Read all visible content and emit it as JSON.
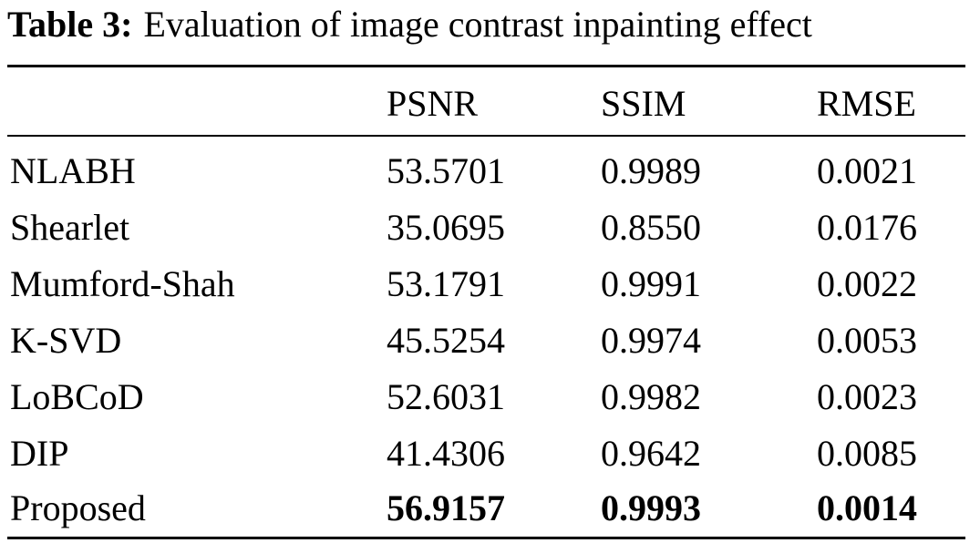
{
  "caption": {
    "label": "Table 3:",
    "text": "Evaluation of image contrast inpainting effect"
  },
  "table": {
    "columns": [
      "",
      "PSNR",
      "SSIM",
      "RMSE"
    ],
    "rows": [
      {
        "method": "NLABH",
        "psnr": "53.5701",
        "ssim": "0.9989",
        "rmse": "0.0021"
      },
      {
        "method": "Shearlet",
        "psnr": "35.0695",
        "ssim": "0.8550",
        "rmse": "0.0176"
      },
      {
        "method": "Mumford-Shah",
        "psnr": "53.1791",
        "ssim": "0.9991",
        "rmse": "0.0022"
      },
      {
        "method": "K-SVD",
        "psnr": "45.5254",
        "ssim": "0.9974",
        "rmse": "0.0053"
      },
      {
        "method": "LoBCoD",
        "psnr": "52.6031",
        "ssim": "0.9982",
        "rmse": "0.0023"
      },
      {
        "method": "DIP",
        "psnr": "41.4306",
        "ssim": "0.9642",
        "rmse": "0.0085"
      },
      {
        "method": "Proposed",
        "psnr": "56.9157",
        "ssim": "0.9993",
        "rmse": "0.0014",
        "bold_values": true
      }
    ]
  }
}
